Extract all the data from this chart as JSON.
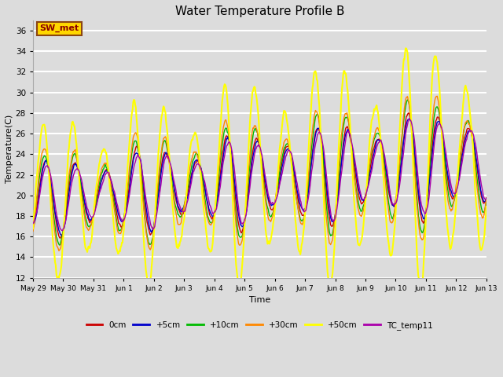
{
  "title": "Water Temperature Profile B",
  "xlabel": "Time",
  "ylabel": "Temperature(C)",
  "ylim": [
    12,
    37
  ],
  "yticks": [
    12,
    14,
    16,
    18,
    20,
    22,
    24,
    26,
    28,
    30,
    32,
    34,
    36
  ],
  "bg_color": "#dcdcdc",
  "annotation": "SW_met",
  "annotation_color": "#8B0000",
  "annotation_bg": "#FFD700",
  "annotation_edge": "#8B4513",
  "series": [
    {
      "label": "0cm",
      "color": "#cc0000",
      "lw": 1.0
    },
    {
      "label": "+5cm",
      "color": "#0000cc",
      "lw": 1.0
    },
    {
      "label": "+10cm",
      "color": "#00bb00",
      "lw": 1.0
    },
    {
      "label": "+30cm",
      "color": "#ff8800",
      "lw": 1.0
    },
    {
      "label": "+50cm",
      "color": "#ffff00",
      "lw": 1.5
    },
    {
      "label": "TC_temp11",
      "color": "#aa00aa",
      "lw": 1.0
    }
  ],
  "tick_labels": [
    "May 29",
    "May 30",
    "May 31",
    "Jun 1",
    "Jun 2",
    "Jun 3",
    "Jun 4",
    "Jun 5",
    "Jun 6",
    "Jun 7",
    "Jun 8",
    "Jun 9",
    "Jun 10",
    "Jun 11",
    "Jun 12",
    "Jun 13"
  ],
  "n_points": 720,
  "duration_days": 15
}
